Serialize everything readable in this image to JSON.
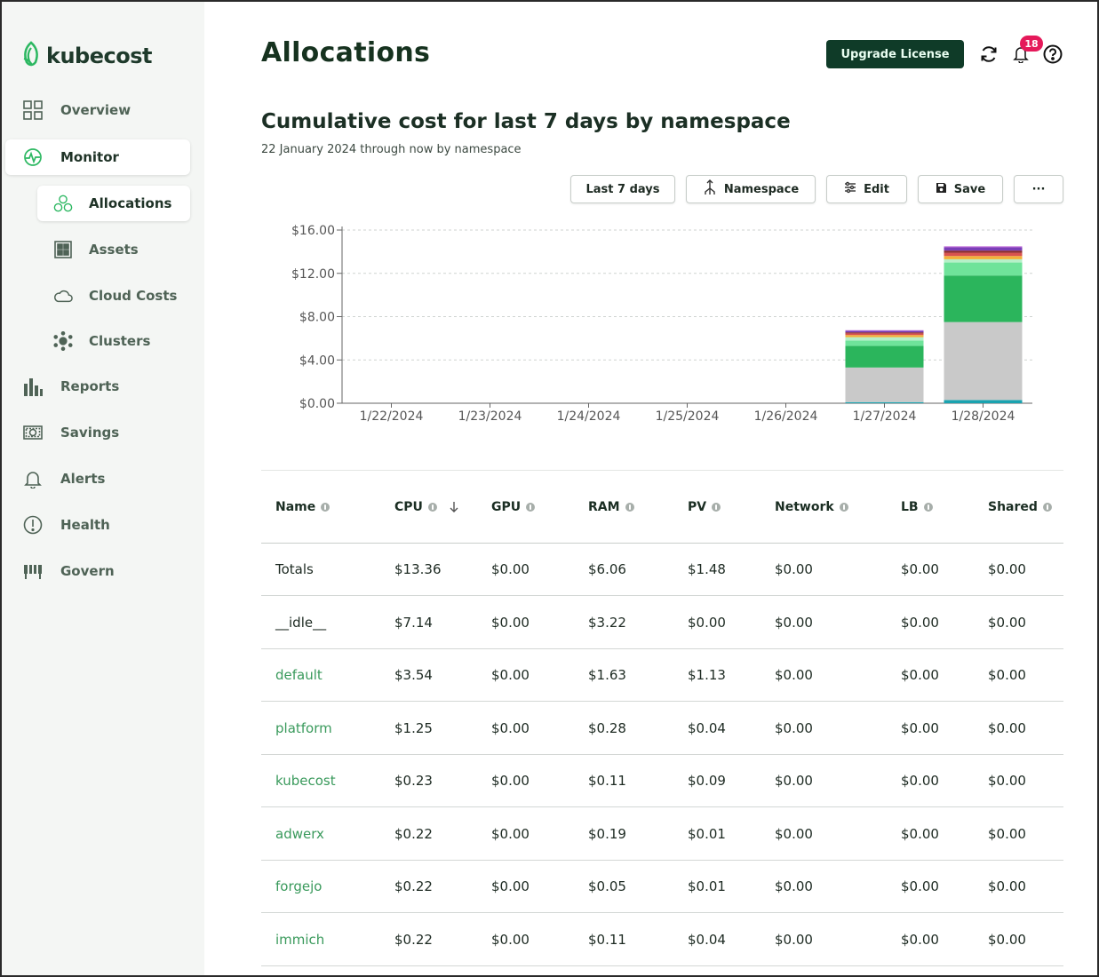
{
  "app": {
    "name": "kubecost"
  },
  "sidebar": {
    "items": [
      {
        "label": "Overview",
        "icon": "grid-icon"
      },
      {
        "label": "Monitor",
        "icon": "monitor-pulse-icon"
      },
      {
        "label": "Allocations",
        "icon": "allocations-icon"
      },
      {
        "label": "Assets",
        "icon": "assets-icon"
      },
      {
        "label": "Cloud Costs",
        "icon": "cloud-icon"
      },
      {
        "label": "Clusters",
        "icon": "clusters-icon"
      },
      {
        "label": "Reports",
        "icon": "bar-chart-icon"
      },
      {
        "label": "Savings",
        "icon": "savings-icon"
      },
      {
        "label": "Alerts",
        "icon": "bell-icon"
      },
      {
        "label": "Health",
        "icon": "health-icon"
      },
      {
        "label": "Govern",
        "icon": "govern-icon"
      }
    ]
  },
  "header": {
    "title": "Allocations",
    "upgrade_label": "Upgrade License",
    "notification_count": "18"
  },
  "report": {
    "title": "Cumulative cost for last 7 days by namespace",
    "subtitle": "22 January 2024 through now by namespace"
  },
  "toolbar": {
    "window_label": "Last 7 days",
    "aggregate_label": "Namespace",
    "edit_label": "Edit",
    "save_label": "Save",
    "more_label": "···"
  },
  "chart_data": {
    "type": "bar",
    "stacked": true,
    "categories": [
      "1/22/2024",
      "1/23/2024",
      "1/24/2024",
      "1/25/2024",
      "1/26/2024",
      "1/27/2024",
      "1/28/2024"
    ],
    "y_ticks": [
      "$0.00",
      "$4.00",
      "$8.00",
      "$12.00",
      "$16.00"
    ],
    "ylim": [
      0,
      16
    ],
    "grid": true,
    "series": [
      {
        "color": "#1aa3b0",
        "values": [
          0,
          0,
          0,
          0,
          0,
          0.1,
          0.3
        ]
      },
      {
        "color": "#c9c9c9",
        "values": [
          0,
          0,
          0,
          0,
          0,
          3.2,
          7.2
        ]
      },
      {
        "color": "#2bb55c",
        "values": [
          0,
          0,
          0,
          0,
          0,
          2.0,
          4.3
        ]
      },
      {
        "color": "#6fe39a",
        "values": [
          0,
          0,
          0,
          0,
          0,
          0.5,
          1.2
        ]
      },
      {
        "color": "#b6f0c8",
        "values": [
          0,
          0,
          0,
          0,
          0,
          0.3,
          0.3
        ]
      },
      {
        "color": "#f2b13a",
        "values": [
          0,
          0,
          0,
          0,
          0,
          0.2,
          0.3
        ]
      },
      {
        "color": "#d9534f",
        "values": [
          0,
          0,
          0,
          0,
          0,
          0.15,
          0.3
        ]
      },
      {
        "color": "#8b2d2d",
        "values": [
          0,
          0,
          0,
          0,
          0,
          0.1,
          0.2
        ]
      },
      {
        "color": "#7b3fb8",
        "values": [
          0,
          0,
          0,
          0,
          0,
          0.15,
          0.3
        ]
      },
      {
        "color": "#c678dd",
        "values": [
          0,
          0,
          0,
          0,
          0,
          0.05,
          0.1
        ]
      }
    ]
  },
  "table": {
    "columns": [
      {
        "label": "Name",
        "sorted": false
      },
      {
        "label": "CPU",
        "sorted": true
      },
      {
        "label": "GPU",
        "sorted": false
      },
      {
        "label": "RAM",
        "sorted": false
      },
      {
        "label": "PV",
        "sorted": false
      },
      {
        "label": "Network",
        "sorted": false
      },
      {
        "label": "LB",
        "sorted": false
      },
      {
        "label": "Shared",
        "sorted": false
      }
    ],
    "rows": [
      {
        "name": "Totals",
        "link": false,
        "values": [
          "$13.36",
          "$0.00",
          "$6.06",
          "$1.48",
          "$0.00",
          "$0.00",
          "$0.00"
        ]
      },
      {
        "name": "__idle__",
        "link": false,
        "values": [
          "$7.14",
          "$0.00",
          "$3.22",
          "$0.00",
          "$0.00",
          "$0.00",
          "$0.00"
        ]
      },
      {
        "name": "default",
        "link": true,
        "values": [
          "$3.54",
          "$0.00",
          "$1.63",
          "$1.13",
          "$0.00",
          "$0.00",
          "$0.00"
        ]
      },
      {
        "name": "platform",
        "link": true,
        "values": [
          "$1.25",
          "$0.00",
          "$0.28",
          "$0.04",
          "$0.00",
          "$0.00",
          "$0.00"
        ]
      },
      {
        "name": "kubecost",
        "link": true,
        "values": [
          "$0.23",
          "$0.00",
          "$0.11",
          "$0.09",
          "$0.00",
          "$0.00",
          "$0.00"
        ]
      },
      {
        "name": "adwerx",
        "link": true,
        "values": [
          "$0.22",
          "$0.00",
          "$0.19",
          "$0.01",
          "$0.00",
          "$0.00",
          "$0.00"
        ]
      },
      {
        "name": "forgejo",
        "link": true,
        "values": [
          "$0.22",
          "$0.00",
          "$0.05",
          "$0.01",
          "$0.00",
          "$0.00",
          "$0.00"
        ]
      },
      {
        "name": "immich",
        "link": true,
        "values": [
          "$0.22",
          "$0.00",
          "$0.11",
          "$0.04",
          "$0.00",
          "$0.00",
          "$0.00"
        ]
      }
    ]
  }
}
